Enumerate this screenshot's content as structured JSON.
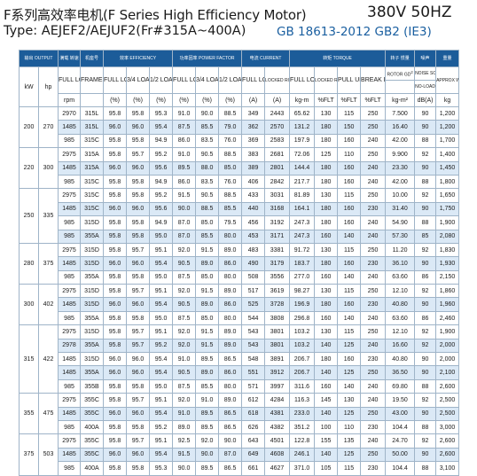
{
  "header": {
    "title_zh": "F系列高效率电机(F Series High Efficiency Motor)",
    "voltage": "380V 50HZ",
    "type_line": "Type: AEJEF2/AEJUF2(Fr#315A~400A)",
    "standard": "GB 18613-2012 GB2 (IE3)"
  },
  "table": {
    "group_headers": {
      "output": "输出 OUTPUT",
      "speed": "满载 转速",
      "frame": "机座号",
      "efficiency": "效率 EFFICIENCY",
      "power_factor": "功率因率 POWER FACTOR",
      "current": "电流 CURRENT",
      "torque": "转矩 TORQUE",
      "rotor_gd2": "转子 惯量",
      "noise": "噪声",
      "weight": "重量"
    },
    "sub_headers": {
      "full_load": "FULL LOAD",
      "frame_no": "FRAME NO.",
      "three_quarter_load": "3/4 LOAD",
      "half_load": "1/2 LOAD",
      "locked_rotor": "LOCKED ROTOR",
      "pull_up": "PULL UP",
      "break_down": "BREAK DOWN",
      "rotor_gd": "ROTOR GD",
      "gd_sup": "2",
      "noise_sound_power": "NOISE SOUND POWER",
      "no_load": "NO-LOAD",
      "approx_weight": "APPROX WEIGHT"
    },
    "unit_headers": {
      "kw": "kW",
      "hp": "hp",
      "rpm": "rpm",
      "pct": "(%)",
      "amp": "(A)",
      "kgm": "kg-m",
      "pct_flt": "%FLT",
      "kgm2": "kg-m²",
      "dba": "dB(A)",
      "kg": "kg"
    },
    "groups": [
      {
        "kw": "200",
        "hp": "270",
        "rows": [
          [
            "2970",
            "315L",
            "95.8",
            "95.8",
            "95.3",
            "91.0",
            "90.0",
            "88.5",
            "349",
            "2443",
            "65.62",
            "130",
            "115",
            "250",
            "7.500",
            "90",
            "1,200"
          ],
          [
            "1485",
            "315L",
            "96.0",
            "96.0",
            "95.4",
            "87.5",
            "85.5",
            "79.0",
            "362",
            "2570",
            "131.2",
            "180",
            "150",
            "250",
            "16.40",
            "90",
            "1,200"
          ],
          [
            "985",
            "315C",
            "95.8",
            "95.8",
            "94.9",
            "86.0",
            "83.5",
            "76.0",
            "369",
            "2583",
            "197.9",
            "180",
            "160",
            "240",
            "42.00",
            "88",
            "1,700"
          ]
        ]
      },
      {
        "kw": "220",
        "hp": "300",
        "rows": [
          [
            "2975",
            "315A",
            "95.8",
            "95.7",
            "95.2",
            "91.0",
            "90.5",
            "88.5",
            "383",
            "2681",
            "72.06",
            "125",
            "110",
            "250",
            "9.900",
            "92",
            "1,400"
          ],
          [
            "1485",
            "315A",
            "96.0",
            "96.0",
            "95.6",
            "89.5",
            "88.0",
            "85.0",
            "389",
            "2801",
            "144.4",
            "180",
            "160",
            "240",
            "23.30",
            "90",
            "1,450"
          ],
          [
            "985",
            "315C",
            "95.8",
            "95.8",
            "94.9",
            "86.0",
            "83.5",
            "76.0",
            "406",
            "2842",
            "217.7",
            "180",
            "160",
            "240",
            "42.00",
            "88",
            "1,800"
          ]
        ]
      },
      {
        "kw": "250",
        "hp": "335",
        "rows": [
          [
            "2975",
            "315C",
            "95.8",
            "95.8",
            "95.2",
            "91.5",
            "90.5",
            "88.5",
            "433",
            "3031",
            "81.89",
            "130",
            "115",
            "250",
            "10.00",
            "92",
            "1,650"
          ],
          [
            "1485",
            "315C",
            "96.0",
            "96.0",
            "95.6",
            "90.0",
            "88.5",
            "85.5",
            "440",
            "3168",
            "164.1",
            "180",
            "160",
            "230",
            "31.40",
            "90",
            "1,750"
          ],
          [
            "985",
            "315D",
            "95.8",
            "95.8",
            "94.9",
            "87.0",
            "85.0",
            "79.5",
            "456",
            "3192",
            "247.3",
            "180",
            "160",
            "240",
            "54.90",
            "88",
            "1,900"
          ],
          [
            "985",
            "355A",
            "95.8",
            "95.8",
            "95.0",
            "87.0",
            "85.5",
            "80.0",
            "453",
            "3171",
            "247.3",
            "160",
            "140",
            "240",
            "57.30",
            "85",
            "2,080"
          ]
        ]
      },
      {
        "kw": "280",
        "hp": "375",
        "rows": [
          [
            "2975",
            "315D",
            "95.8",
            "95.7",
            "95.1",
            "92.0",
            "91.5",
            "89.0",
            "483",
            "3381",
            "91.72",
            "130",
            "115",
            "250",
            "11.20",
            "92",
            "1,830"
          ],
          [
            "1485",
            "315D",
            "96.0",
            "96.0",
            "95.4",
            "90.5",
            "89.0",
            "86.0",
            "490",
            "3179",
            "183.7",
            "180",
            "160",
            "230",
            "36.10",
            "90",
            "1,930"
          ],
          [
            "985",
            "355A",
            "95.8",
            "95.8",
            "95.0",
            "87.5",
            "85.0",
            "80.0",
            "508",
            "3556",
            "277.0",
            "160",
            "140",
            "240",
            "63.60",
            "86",
            "2,150"
          ]
        ]
      },
      {
        "kw": "300",
        "hp": "402",
        "rows": [
          [
            "2975",
            "315D",
            "95.8",
            "95.7",
            "95.1",
            "92.0",
            "91.5",
            "89.0",
            "517",
            "3619",
            "98.27",
            "130",
            "115",
            "250",
            "12.10",
            "92",
            "1,860"
          ],
          [
            "1485",
            "315D",
            "96.0",
            "96.0",
            "95.4",
            "90.5",
            "89.0",
            "86.0",
            "525",
            "3728",
            "196.9",
            "180",
            "160",
            "230",
            "40.80",
            "90",
            "1,960"
          ],
          [
            "985",
            "355A",
            "95.8",
            "95.8",
            "95.0",
            "87.5",
            "85.0",
            "80.0",
            "544",
            "3808",
            "296.8",
            "160",
            "140",
            "240",
            "63.60",
            "86",
            "2,460"
          ]
        ]
      },
      {
        "kw": "315",
        "hp": "422",
        "rows": [
          [
            "2975",
            "315D",
            "95.8",
            "95.7",
            "95.1",
            "92.0",
            "91.5",
            "89.0",
            "543",
            "3801",
            "103.2",
            "130",
            "115",
            "250",
            "12.10",
            "92",
            "1,900"
          ],
          [
            "2978",
            "355A",
            "95.8",
            "95.7",
            "95.2",
            "92.0",
            "91.5",
            "89.0",
            "543",
            "3801",
            "103.2",
            "140",
            "125",
            "240",
            "16.60",
            "92",
            "2,000"
          ],
          [
            "1485",
            "315D",
            "96.0",
            "96.0",
            "95.4",
            "91.0",
            "89.5",
            "86.5",
            "548",
            "3891",
            "206.7",
            "180",
            "160",
            "230",
            "40.80",
            "90",
            "2,000"
          ],
          [
            "1485",
            "355A",
            "96.0",
            "96.0",
            "95.4",
            "90.5",
            "89.0",
            "86.0",
            "551",
            "3912",
            "206.7",
            "140",
            "125",
            "250",
            "36.50",
            "90",
            "2,100"
          ],
          [
            "985",
            "355B",
            "95.8",
            "95.8",
            "95.0",
            "87.5",
            "85.5",
            "80.0",
            "571",
            "3997",
            "311.6",
            "160",
            "140",
            "240",
            "69.80",
            "88",
            "2,600"
          ]
        ]
      },
      {
        "kw": "355",
        "hp": "475",
        "rows": [
          [
            "2975",
            "355C",
            "95.8",
            "95.7",
            "95.1",
            "92.0",
            "91.0",
            "89.0",
            "612",
            "4284",
            "116.3",
            "145",
            "130",
            "240",
            "19.50",
            "92",
            "2,500"
          ],
          [
            "1485",
            "355C",
            "96.0",
            "96.0",
            "95.4",
            "91.0",
            "89.5",
            "86.5",
            "618",
            "4381",
            "233.0",
            "140",
            "125",
            "250",
            "43.00",
            "90",
            "2,500"
          ],
          [
            "985",
            "400A",
            "95.8",
            "95.8",
            "95.2",
            "89.0",
            "89.5",
            "86.5",
            "626",
            "4382",
            "351.2",
            "100",
            "110",
            "230",
            "104.4",
            "88",
            "3,000"
          ]
        ]
      },
      {
        "kw": "375",
        "hp": "503",
        "rows": [
          [
            "2975",
            "355C",
            "95.8",
            "95.7",
            "95.1",
            "92.5",
            "92.0",
            "90.0",
            "643",
            "4501",
            "122.8",
            "155",
            "135",
            "240",
            "24.70",
            "92",
            "2,600"
          ],
          [
            "1485",
            "355C",
            "96.0",
            "96.0",
            "95.4",
            "91.5",
            "90.0",
            "87.0",
            "649",
            "4608",
            "246.1",
            "140",
            "125",
            "250",
            "50.00",
            "90",
            "2,600"
          ],
          [
            "985",
            "400A",
            "95.8",
            "95.8",
            "95.3",
            "90.0",
            "89.5",
            "86.5",
            "661",
            "4627",
            "371.0",
            "105",
            "115",
            "230",
            "104.4",
            "88",
            "3,100"
          ]
        ]
      }
    ]
  }
}
